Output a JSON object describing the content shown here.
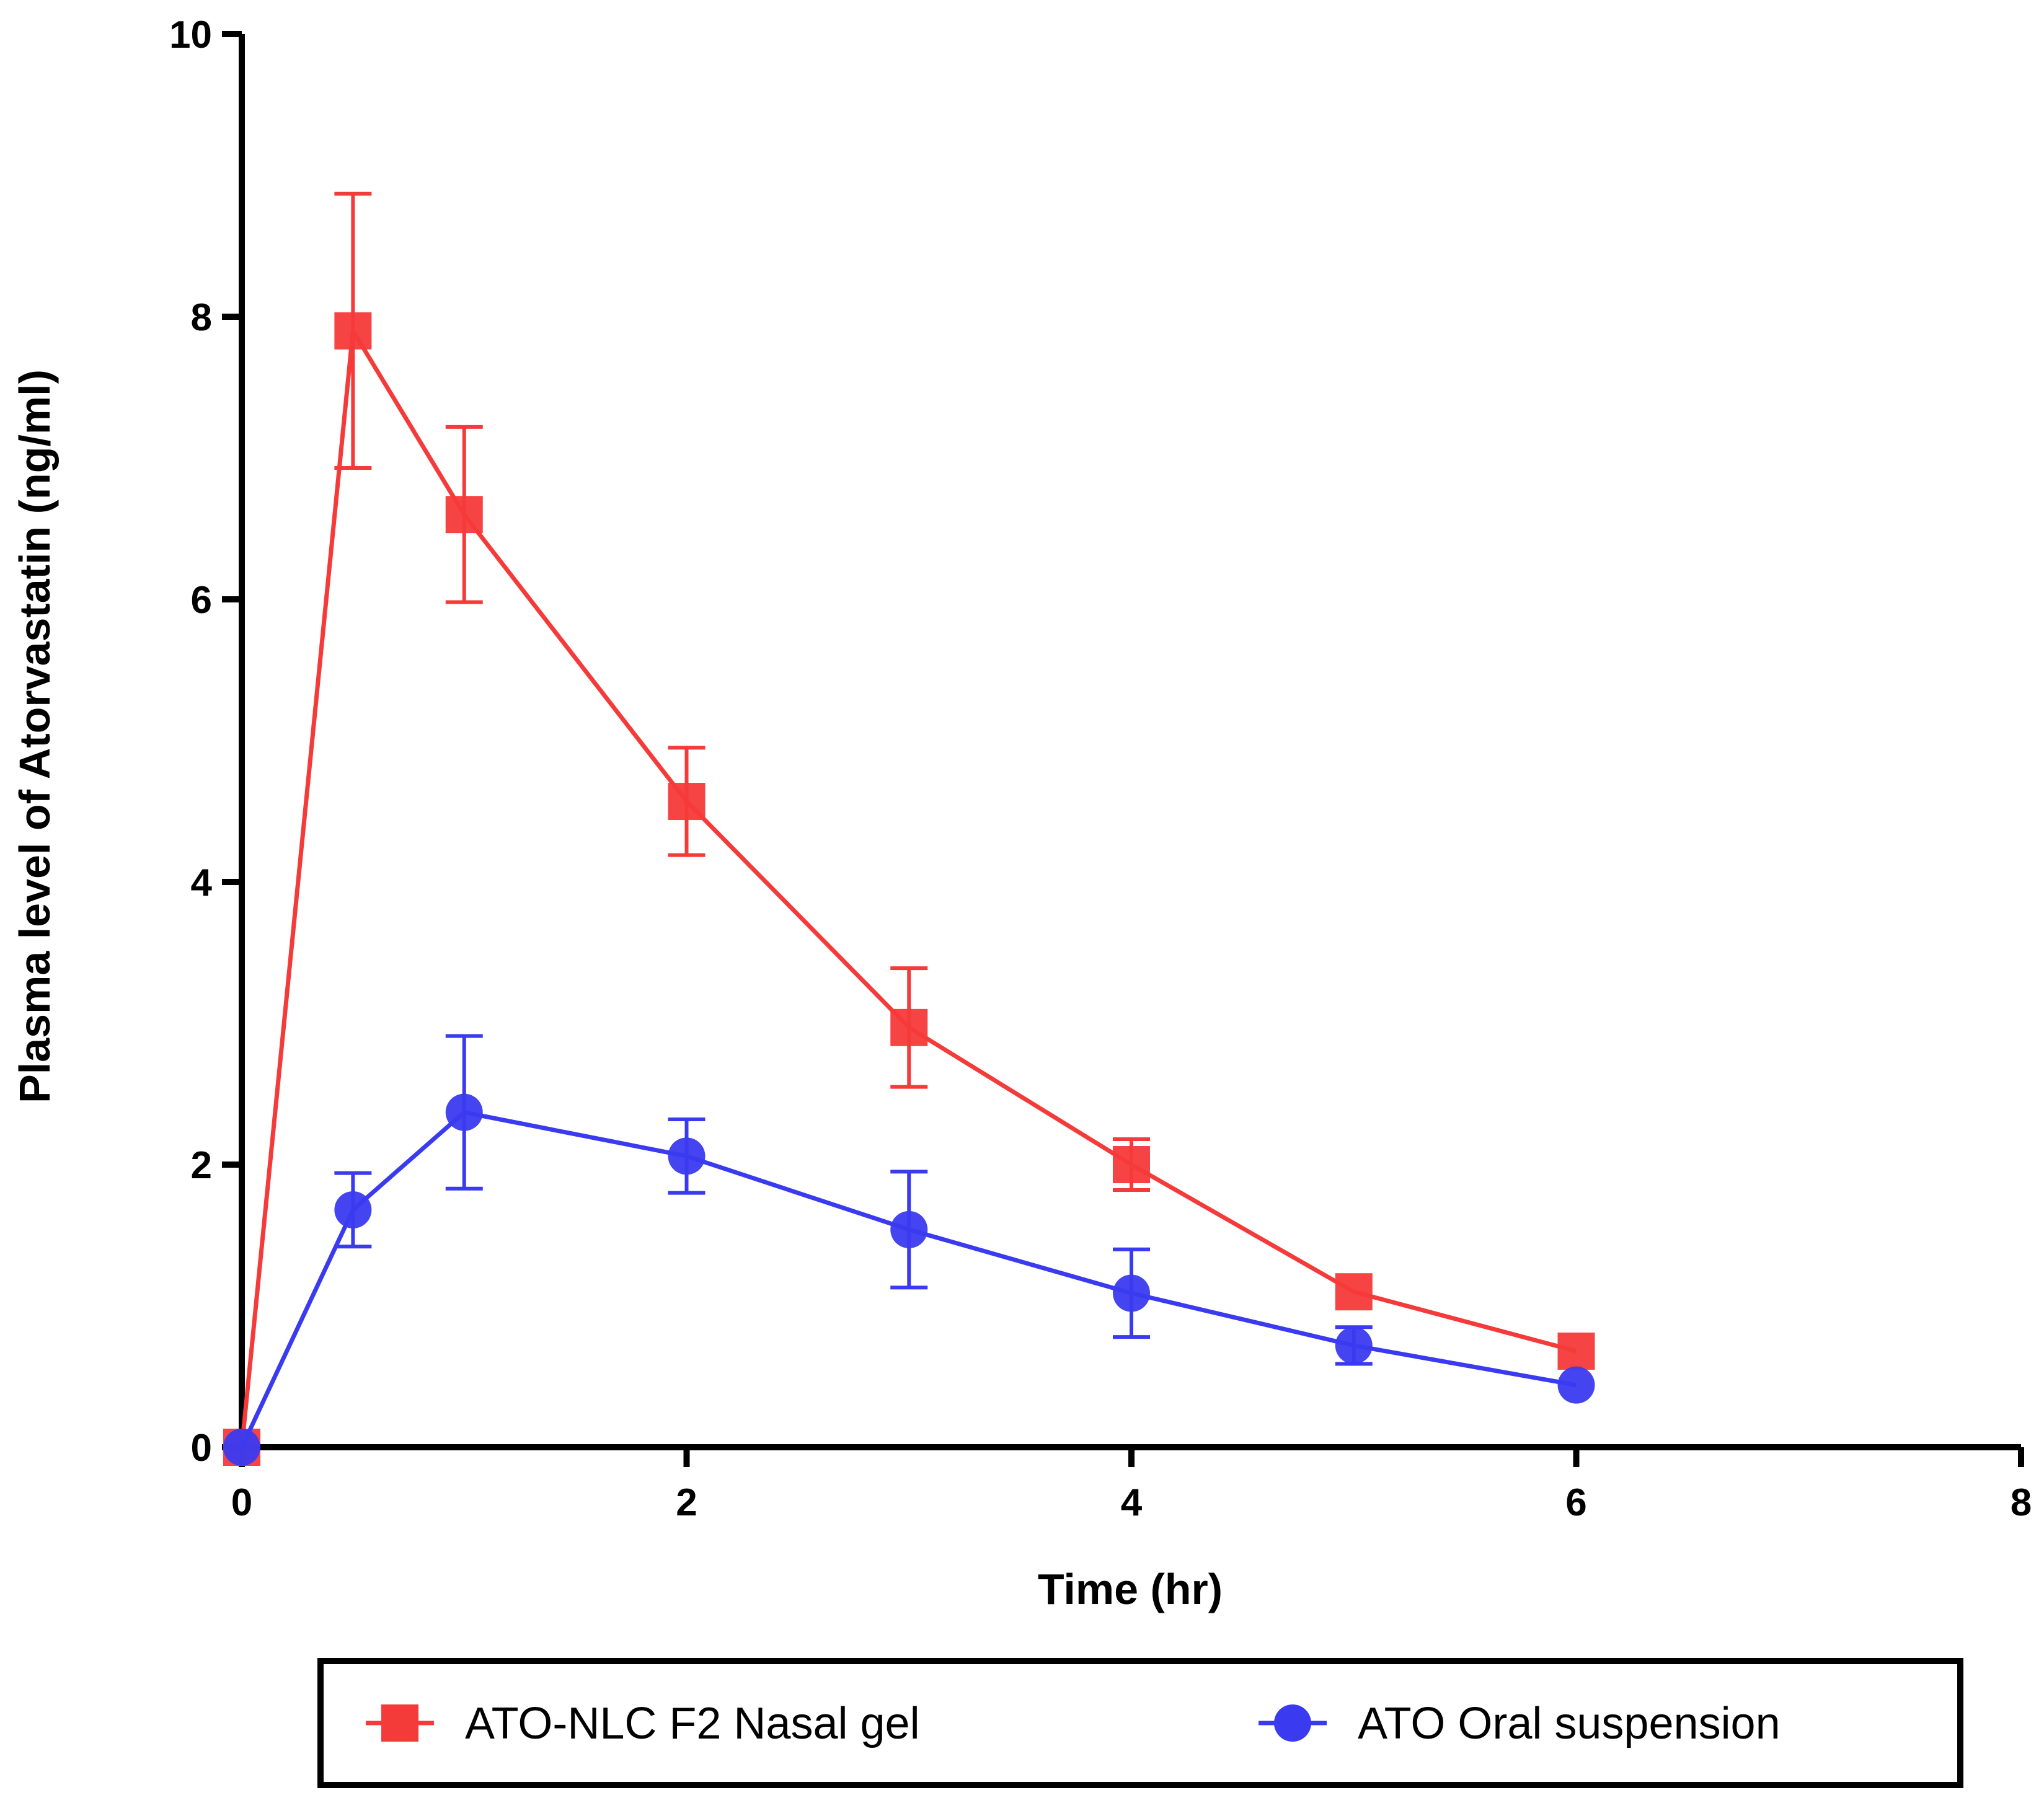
{
  "chart_data": {
    "type": "line",
    "xlabel": "Time (hr)",
    "ylabel": "Plasma level of Atorvastatin (ng/ml)",
    "xlim": [
      0,
      8
    ],
    "ylim": [
      0,
      10
    ],
    "xticks": [
      "0",
      "2",
      "4",
      "6",
      "8"
    ],
    "yticks": [
      "0",
      "2",
      "4",
      "6",
      "8",
      "10"
    ],
    "grid": false,
    "legend_position": "bottom",
    "series": [
      {
        "name": "ATO-NLC F2 Nasal gel",
        "color": "#f53a3a",
        "marker": "square",
        "x": [
          0,
          0.5,
          1,
          2,
          3,
          4,
          5,
          6
        ],
        "y": [
          0,
          7.9,
          6.6,
          4.57,
          2.97,
          2.0,
          1.1,
          0.68
        ],
        "error": [
          0,
          0.97,
          0.62,
          0.38,
          0.42,
          0.18,
          0,
          0
        ]
      },
      {
        "name": "ATO Oral suspension",
        "color": "#3a3af0",
        "marker": "circle",
        "x": [
          0,
          0.5,
          1,
          2,
          3,
          4,
          5,
          6
        ],
        "y": [
          0,
          1.68,
          2.37,
          2.06,
          1.54,
          1.09,
          0.72,
          0.44
        ],
        "error": [
          0,
          0.26,
          0.54,
          0.26,
          0.41,
          0.31,
          0.13,
          0
        ]
      }
    ]
  }
}
